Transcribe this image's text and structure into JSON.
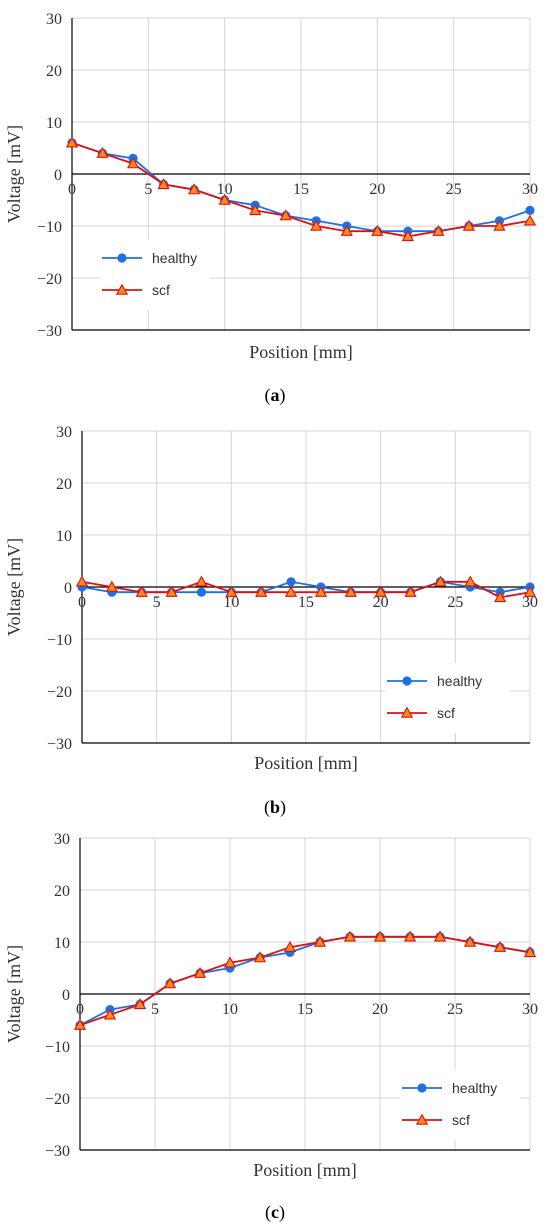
{
  "chart_data": [
    {
      "type": "line",
      "panel_label": "a",
      "xlabel": "Position [mm]",
      "ylabel": "Voltage [mV]",
      "xlim": [
        0,
        30
      ],
      "ylim": [
        -30,
        30
      ],
      "xticks": [
        0,
        5,
        10,
        15,
        20,
        25,
        30
      ],
      "yticks": [
        -30,
        -20,
        -10,
        0,
        10,
        20,
        30
      ],
      "ytick_labels": [
        "−30",
        "−20",
        "−10",
        "0",
        "10",
        "20",
        "30"
      ],
      "grid": true,
      "legend_position": "lower-left",
      "x": [
        0,
        2,
        4,
        6,
        8,
        10,
        12,
        14,
        16,
        18,
        20,
        22,
        24,
        26,
        28,
        30
      ],
      "series": [
        {
          "name": "healthy",
          "color": "#1f6fe5",
          "marker": "circle",
          "values": [
            6,
            4,
            3,
            -2,
            -3,
            -5,
            -6,
            -8,
            -9,
            -10,
            -11,
            -11,
            -11,
            -10,
            -9,
            -7
          ]
        },
        {
          "name": "scf",
          "color": "#e01010",
          "marker": "triangle",
          "values": [
            6,
            4,
            2,
            -2,
            -3,
            -5,
            -7,
            -8,
            -10,
            -11,
            -11,
            -12,
            -11,
            -10,
            -10,
            -9
          ]
        }
      ]
    },
    {
      "type": "line",
      "panel_label": "b",
      "xlabel": "Position [mm]",
      "ylabel": "Voltage [mV]",
      "xlim": [
        0,
        30
      ],
      "ylim": [
        -30,
        30
      ],
      "xticks": [
        0,
        5,
        10,
        15,
        20,
        25,
        30
      ],
      "yticks": [
        -30,
        -20,
        -10,
        0,
        10,
        20,
        30
      ],
      "ytick_labels": [
        "−30",
        "−20",
        "−10",
        "0",
        "10",
        "20",
        "30"
      ],
      "grid": true,
      "legend_position": "lower-right",
      "x": [
        0,
        2,
        4,
        6,
        8,
        10,
        12,
        14,
        16,
        18,
        20,
        22,
        24,
        26,
        28,
        30
      ],
      "series": [
        {
          "name": "healthy",
          "color": "#1f6fe5",
          "marker": "circle",
          "values": [
            0,
            -1,
            -1,
            -1,
            -1,
            -1,
            -1,
            1,
            0,
            -1,
            -1,
            -1,
            1,
            0,
            -1,
            0
          ]
        },
        {
          "name": "scf",
          "color": "#e01010",
          "marker": "triangle",
          "values": [
            1,
            0,
            -1,
            -1,
            1,
            -1,
            -1,
            -1,
            -1,
            -1,
            -1,
            -1,
            1,
            1,
            -2,
            -1
          ]
        }
      ]
    },
    {
      "type": "line",
      "panel_label": "c",
      "xlabel": "Position [mm]",
      "ylabel": "Voltage [mV]",
      "xlim": [
        0,
        30
      ],
      "ylim": [
        -30,
        30
      ],
      "xticks": [
        0,
        5,
        10,
        15,
        20,
        25,
        30
      ],
      "yticks": [
        -30,
        -20,
        -10,
        0,
        10,
        20,
        30
      ],
      "ytick_labels": [
        "−30",
        "−20",
        "−10",
        "0",
        "10",
        "20",
        "30"
      ],
      "grid": true,
      "legend_position": "lower-right",
      "x": [
        0,
        2,
        4,
        6,
        8,
        10,
        12,
        14,
        16,
        18,
        20,
        22,
        24,
        26,
        28,
        30
      ],
      "series": [
        {
          "name": "healthy",
          "color": "#1f6fe5",
          "marker": "circle",
          "values": [
            -6,
            -3,
            -2,
            2,
            4,
            5,
            7,
            8,
            10,
            11,
            11,
            11,
            11,
            10,
            9,
            8
          ]
        },
        {
          "name": "scf",
          "color": "#e01010",
          "marker": "triangle",
          "values": [
            -6,
            -4,
            -2,
            2,
            4,
            6,
            7,
            9,
            10,
            11,
            11,
            11,
            11,
            10,
            9,
            8
          ]
        }
      ]
    }
  ]
}
